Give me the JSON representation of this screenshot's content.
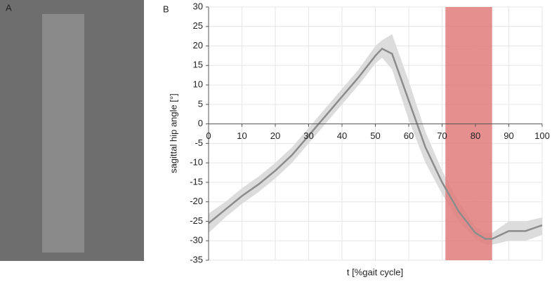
{
  "chart_data": {
    "type": "line",
    "panel_a": "A",
    "panel_b": "B",
    "ylabel": "sagittal hip angle [°]",
    "xlabel": "t [%gait cycle]",
    "x": [
      0,
      5,
      10,
      15,
      20,
      25,
      30,
      35,
      40,
      45,
      50,
      52,
      55,
      60,
      65,
      70,
      75,
      80,
      83,
      85,
      90,
      95,
      100
    ],
    "series": [
      {
        "color": "#8c8c8c",
        "values": [
          -25.5,
          -22,
          -18.5,
          -15.5,
          -12,
          -8,
          -3,
          2,
          7,
          12,
          17.5,
          19.3,
          18,
          6,
          -6,
          -15,
          -22.5,
          -28,
          -29.5,
          -29.5,
          -27.5,
          -27.5,
          -26
        ]
      }
    ],
    "band_upper": [
      -23,
      -20,
      -16.5,
      -13.5,
      -10,
      -6,
      -1,
      4,
      9,
      14,
      20,
      21.5,
      23,
      11,
      -2,
      -12,
      -20,
      -26.5,
      -28,
      -28,
      -25,
      -25,
      -24
    ],
    "band_lower": [
      -28,
      -24,
      -20.5,
      -17.5,
      -14,
      -10,
      -5,
      0,
      5,
      10,
      15.5,
      17,
      14,
      1,
      -10,
      -18,
      -25,
      -29.5,
      -31,
      -31,
      -30,
      -30,
      -28.5
    ],
    "band_color": "#dcdcdc",
    "highlight": [
      71,
      85
    ],
    "highlight_color": "#e07b7b",
    "xlim": [
      0,
      100
    ],
    "xticks": [
      0,
      10,
      20,
      30,
      40,
      50,
      60,
      70,
      80,
      90,
      100
    ],
    "ylim": [
      -35,
      30
    ],
    "yticks": [
      -35,
      -30,
      -25,
      -20,
      -15,
      -10,
      -5,
      0,
      5,
      10,
      15,
      20,
      25,
      30
    ],
    "grid": true
  }
}
